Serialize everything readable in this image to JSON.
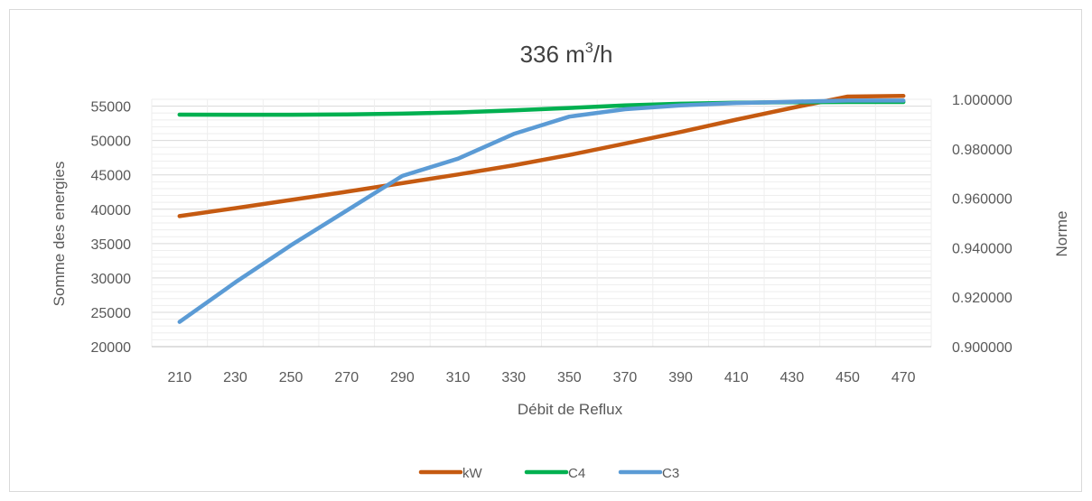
{
  "chart_data": {
    "type": "line",
    "title_main": "336 m",
    "title_sup": "3",
    "title_tail": "/h",
    "xlabel": "Débit de Reflux",
    "ylabel": "Somme des energies",
    "y2label": "Norme",
    "categories": [
      "210",
      "230",
      "250",
      "270",
      "290",
      "310",
      "330",
      "350",
      "370",
      "390",
      "410",
      "430",
      "450",
      "470"
    ],
    "x_tick_labels": [
      "210",
      "230",
      "250",
      "270",
      "290",
      "310",
      "330",
      "350",
      "370",
      "390",
      "410",
      "430",
      "450",
      "470"
    ],
    "y_ticks": [
      "20000",
      "25000",
      "30000",
      "35000",
      "40000",
      "45000",
      "50000",
      "55000"
    ],
    "y2_ticks": [
      "0.900000",
      "0.920000",
      "0.940000",
      "0.960000",
      "0.980000",
      "1.000000"
    ],
    "ylim": [
      20000,
      56000
    ],
    "y2lim": [
      0.9,
      1.0
    ],
    "grid": true,
    "legend_position": "bottom",
    "series": [
      {
        "name": "kW",
        "axis": "left",
        "color": "#c55a11",
        "values": [
          39000,
          40150,
          41350,
          42550,
          43800,
          45050,
          46400,
          47900,
          49550,
          51250,
          53050,
          54750,
          56400,
          56500
        ]
      },
      {
        "name": "C4",
        "axis": "right",
        "color": "#00b050",
        "values": [
          0.9938,
          0.99375,
          0.99375,
          0.9939,
          0.9942,
          0.9947,
          0.9955,
          0.9965,
          0.9975,
          0.9982,
          0.9986,
          0.9988,
          0.9989,
          0.9989
        ]
      },
      {
        "name": "C3",
        "axis": "right",
        "color": "#5b9bd5",
        "values": [
          0.91,
          0.926,
          0.941,
          0.955,
          0.969,
          0.976,
          0.986,
          0.993,
          0.996,
          0.9975,
          0.9985,
          0.999,
          0.9995,
          0.9995
        ]
      }
    ]
  }
}
